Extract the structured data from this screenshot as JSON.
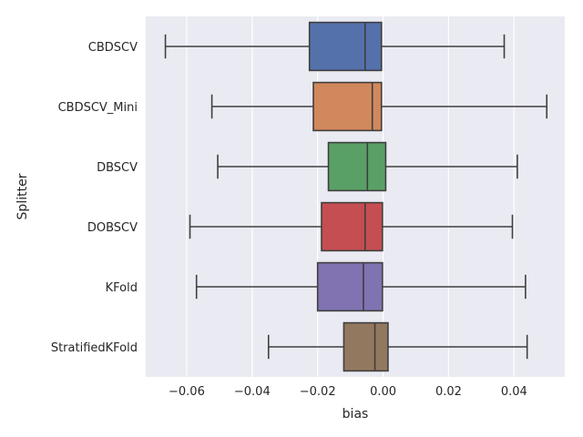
{
  "chart_data": {
    "type": "box",
    "title": "",
    "xlabel": "bias",
    "ylabel": "Splitter",
    "xlim": [
      -0.0725,
      0.0555
    ],
    "xticks": [
      -0.06,
      -0.04,
      -0.02,
      0.0,
      0.02,
      0.04
    ],
    "xtick_labels": [
      "−0.06",
      "−0.04",
      "−0.02",
      "0.00",
      "0.02",
      "0.04"
    ],
    "grid": true,
    "background": "#eaeaf2",
    "line_color": "#3f3f3f",
    "series": [
      {
        "label": "CBDSCV",
        "color": "#5471ab",
        "whisker_low": -0.0665,
        "q1": -0.0225,
        "median": -0.0055,
        "q3": -0.0005,
        "whisker_high": 0.037
      },
      {
        "label": "CBDSCV_Mini",
        "color": "#d1885c",
        "whisker_low": -0.0523,
        "q1": -0.0213,
        "median": -0.0033,
        "q3": -0.0005,
        "whisker_high": 0.05
      },
      {
        "label": "DBSCV",
        "color": "#59a066",
        "whisker_low": -0.0505,
        "q1": -0.0167,
        "median": -0.0048,
        "q3": 0.0008,
        "whisker_high": 0.041
      },
      {
        "label": "DOBSCV",
        "color": "#c44e52",
        "whisker_low": -0.059,
        "q1": -0.0188,
        "median": -0.0055,
        "q3": -0.0002,
        "whisker_high": 0.0395
      },
      {
        "label": "KFold",
        "color": "#8172b2",
        "whisker_low": -0.057,
        "q1": -0.02,
        "median": -0.006,
        "q3": -0.0002,
        "whisker_high": 0.0435
      },
      {
        "label": "StratifiedKFold",
        "color": "#937860",
        "whisker_low": -0.035,
        "q1": -0.012,
        "median": -0.0025,
        "q3": 0.0015,
        "whisker_high": 0.044
      }
    ]
  }
}
